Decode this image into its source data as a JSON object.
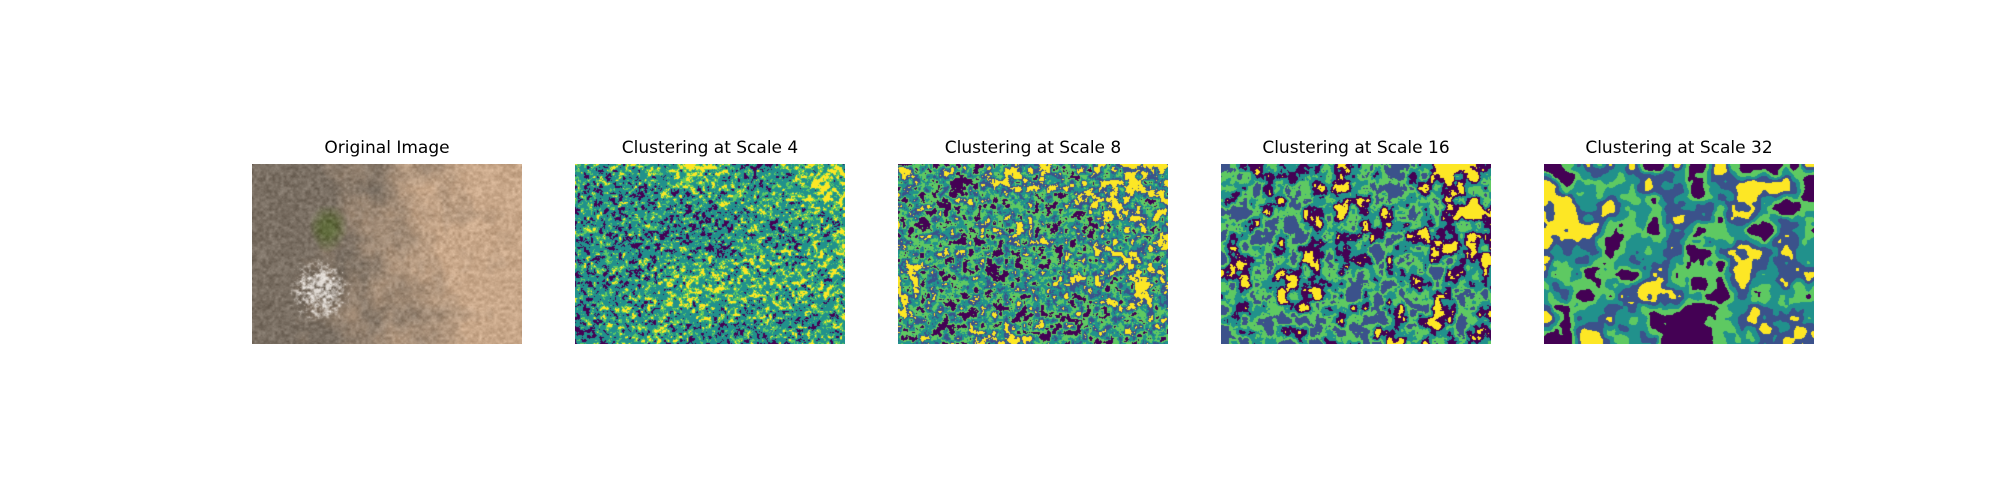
{
  "figure": {
    "panels": [
      {
        "title": "Original Image",
        "kind": "photo",
        "palette": [
          "#7a6f63",
          "#c9a88a",
          "#bfb2a3",
          "#5f6a3c",
          "#d8d2cc",
          "#a98d76"
        ]
      },
      {
        "title": "Clustering at Scale 4",
        "kind": "clusters",
        "clusters": 5,
        "palette": [
          "#440154",
          "#3b528b",
          "#21918c",
          "#5ec962",
          "#fde725"
        ]
      },
      {
        "title": "Clustering at Scale 8",
        "kind": "clusters",
        "clusters": 5,
        "palette": [
          "#440154",
          "#3b528b",
          "#21918c",
          "#5ec962",
          "#fde725"
        ]
      },
      {
        "title": "Clustering at Scale 16",
        "kind": "clusters",
        "clusters": 5,
        "palette": [
          "#440154",
          "#3b528b",
          "#21918c",
          "#5ec962",
          "#fde725"
        ]
      },
      {
        "title": "Clustering at Scale 32",
        "kind": "clusters",
        "clusters": 5,
        "palette": [
          "#440154",
          "#3b528b",
          "#21918c",
          "#5ec962",
          "#fde725"
        ]
      }
    ]
  }
}
